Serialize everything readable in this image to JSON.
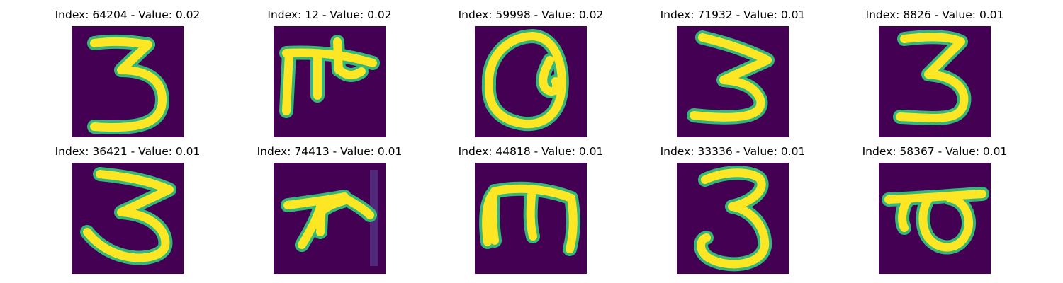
{
  "colors": {
    "background": "#440154",
    "stroke_core": "#fde725",
    "stroke_edge": "#35b779"
  },
  "panels": [
    {
      "title": "Index: 64204 - Value: 0.02",
      "glyph": "three-a"
    },
    {
      "title": "Index: 12 - Value: 0.02",
      "glyph": "pi-hook"
    },
    {
      "title": "Index: 59998 - Value: 0.02",
      "glyph": "loop-glyph"
    },
    {
      "title": "Index: 71932 - Value: 0.01",
      "glyph": "three-b"
    },
    {
      "title": "Index: 8826 - Value: 0.01",
      "glyph": "three-c"
    },
    {
      "title": "Index: 36421 - Value: 0.01",
      "glyph": "three-d"
    },
    {
      "title": "Index: 74413 - Value: 0.01",
      "glyph": "star-glyph"
    },
    {
      "title": "Index: 44818 - Value: 0.01",
      "glyph": "m-glyph"
    },
    {
      "title": "Index: 33336 - Value: 0.01",
      "glyph": "three-e"
    },
    {
      "title": "Index: 58367 - Value: 0.01",
      "glyph": "ta-glyph"
    }
  ]
}
